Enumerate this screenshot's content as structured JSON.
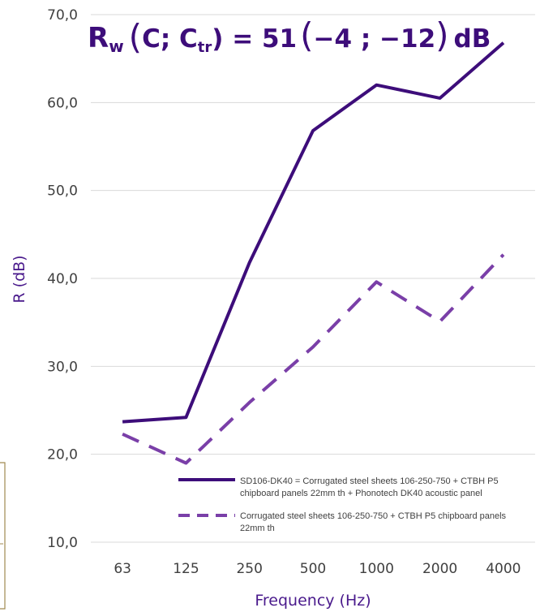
{
  "chart_data": {
    "type": "line",
    "title_parts": {
      "r": "R",
      "w": "w",
      "open": "(",
      "c": "C; C",
      "tr": "tr",
      "rest": ") = 51",
      "open2": "(",
      "vals": "−4 ; −12",
      "close2": ")",
      "unit": "dB"
    },
    "xlabel": "Frequency (Hz)",
    "ylabel": "R (dB)",
    "categories": [
      "63",
      "125",
      "250",
      "500",
      "1000",
      "2000",
      "4000"
    ],
    "ylim": [
      10,
      70
    ],
    "yticks": [
      "10,0",
      "20,0",
      "30,0",
      "40,0",
      "50,0",
      "60,0",
      "70,0"
    ],
    "grid": true,
    "legend_position": "bottom-right",
    "series": [
      {
        "name_lines": [
          "SD106-DK40 = Corrugated steel sheets 106-250-750 + CTBH P5",
          "chipboard panels 22mm th + Phonotech DK40 acoustic panel"
        ],
        "style": "solid",
        "color": "#3d0d7a",
        "values": [
          23.7,
          24.2,
          41.8,
          56.8,
          62.0,
          60.5,
          66.8
        ]
      },
      {
        "name_lines": [
          "Corrugated steel sheets 106-250-750 + CTBH P5 chipboard panels",
          "22mm th"
        ],
        "style": "dashed",
        "color": "#7a3fa8",
        "values": [
          22.3,
          19.0,
          25.9,
          32.2,
          39.6,
          35.1,
          42.7
        ]
      }
    ],
    "colors": {
      "title": "#3d0d7a",
      "axis_title": "#4a1a8c",
      "grid": "#d9d9d9",
      "tick": "#404040"
    }
  }
}
